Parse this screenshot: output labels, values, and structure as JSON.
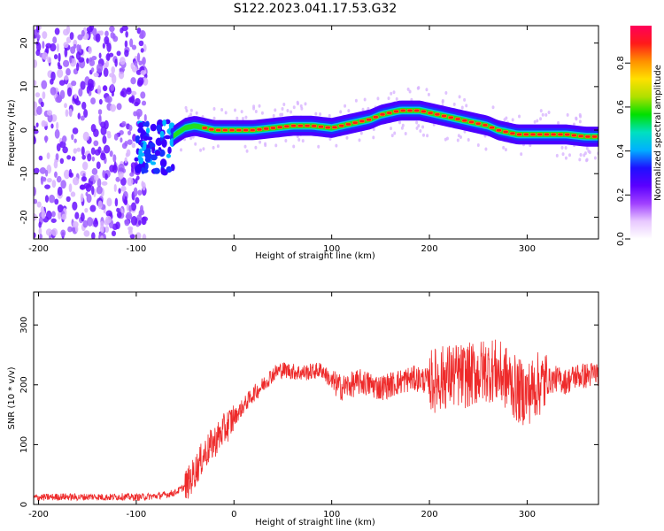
{
  "title": "S122.2023.041.17.53.G32",
  "colors": {
    "snr_line": "#ee2a2a",
    "axis": "#000000",
    "colormap": [
      "#ffffff",
      "#e8c8ff",
      "#a040ff",
      "#5a00ff",
      "#1e10ff",
      "#00b0ff",
      "#00e0c0",
      "#00e000",
      "#b0e000",
      "#ffe000",
      "#ff9000",
      "#ff1a1a",
      "#ff005a"
    ]
  },
  "chart_data": [
    {
      "type": "heatmap",
      "title": "S122.2023.041.17.53.G32",
      "xlabel": "Height of straight line (km)",
      "ylabel": "Frequency (Hz)",
      "xlim": [
        -205,
        373
      ],
      "ylim": [
        -25,
        24
      ],
      "xticks": [
        -200,
        -100,
        0,
        100,
        200,
        300
      ],
      "yticks": [
        -20,
        -10,
        0,
        10,
        20
      ],
      "colorbar": {
        "label": "Normalized spectral amplitude",
        "range": [
          0,
          0.97
        ],
        "ticks": [
          "0.0",
          "0.2",
          "0.4",
          "0.6",
          "0.8"
        ],
        "tick_values": [
          0.0,
          0.2,
          0.4,
          0.6,
          0.8
        ]
      },
      "ridge": {
        "x": [
          -100,
          -90,
          -80,
          -70,
          -60,
          -50,
          -40,
          -20,
          0,
          20,
          40,
          60,
          80,
          100,
          110,
          120,
          130,
          140,
          150,
          160,
          170,
          180,
          190,
          200,
          210,
          220,
          230,
          240,
          250,
          260,
          270,
          280,
          290,
          300,
          320,
          340,
          360,
          373
        ],
        "freq": [
          -2,
          -3,
          -3,
          -3,
          -1,
          0.5,
          1,
          0,
          0,
          0,
          0.5,
          1,
          1,
          0.5,
          1,
          1.5,
          2,
          2.5,
          3.5,
          4,
          4.5,
          4.5,
          4.5,
          4,
          3.5,
          3,
          2.5,
          2,
          1.5,
          1,
          0,
          -0.5,
          -1,
          -1,
          -1,
          -1,
          -1.5,
          -1.5
        ]
      }
    },
    {
      "type": "line",
      "xlabel": "Height of straight line (km)",
      "ylabel": "SNR (10 * v/v)",
      "xlim": [
        -205,
        373
      ],
      "ylim": [
        0,
        355
      ],
      "xticks": [
        -200,
        -100,
        0,
        100,
        200,
        300
      ],
      "yticks": [
        0,
        100,
        200,
        300
      ],
      "series": [
        {
          "x": [
            -205,
            -190,
            -175,
            -160,
            -145,
            -130,
            -115,
            -100,
            -90,
            -80,
            -70,
            -60,
            -50,
            -45,
            -40,
            -35,
            -30,
            -25,
            -20,
            -15,
            -10,
            -5,
            0,
            5,
            10,
            15,
            20,
            25,
            30,
            35,
            40,
            45,
            50,
            55,
            60,
            70,
            80,
            90,
            100,
            110,
            120,
            130,
            140,
            150,
            160,
            170,
            180,
            190,
            200,
            210,
            220,
            230,
            240,
            250,
            260,
            265,
            270,
            280,
            290,
            300,
            310,
            320,
            330,
            340,
            350,
            360,
            373
          ],
          "values": [
            12,
            12,
            13,
            12,
            13,
            12,
            13,
            12,
            13,
            14,
            16,
            20,
            30,
            40,
            55,
            70,
            85,
            95,
            105,
            115,
            125,
            135,
            145,
            155,
            165,
            175,
            185,
            192,
            200,
            210,
            218,
            223,
            225,
            224,
            222,
            220,
            222,
            225,
            205,
            195,
            200,
            205,
            200,
            195,
            200,
            205,
            210,
            210,
            205,
            210,
            215,
            215,
            215,
            220,
            225,
            225,
            220,
            210,
            190,
            185,
            200,
            205,
            210,
            205,
            215,
            215,
            220
          ]
        }
      ]
    }
  ]
}
